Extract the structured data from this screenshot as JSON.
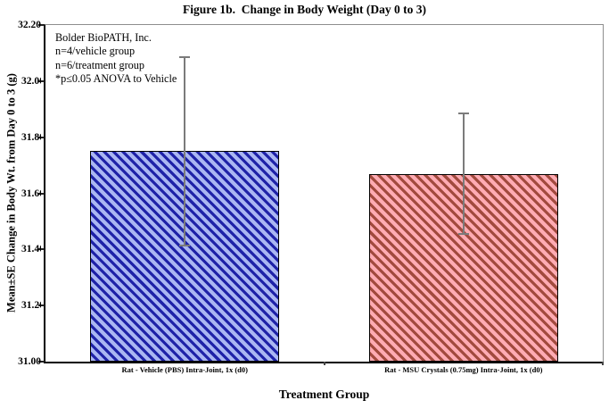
{
  "title": "Figure 1b.  Change in Body Weight (Day 0 to 3)",
  "annotation": {
    "lines": [
      "Bolder BioPATH, Inc.",
      "n=4/vehicle group",
      "n=6/treatment group",
      "*p≤0.05 ANOVA to Vehicle"
    ]
  },
  "chart_data": {
    "type": "bar",
    "title": "Figure 1b.  Change in Body Weight (Day 0 to 3)",
    "xlabel": "Treatment Group",
    "ylabel": "Mean±SE Change in Body Wt. from Day 0 to 3 (g)",
    "categories": [
      "Rat - Vehicle (PBS) Intra-Joint, 1x (d0)",
      "Rat - MSU Crystals (0.75mg) Intra-Joint, 1x (d0)"
    ],
    "values": [
      31.75,
      31.67
    ],
    "errors": [
      0.335,
      0.215
    ],
    "error_type": "SE",
    "ylim": [
      31.0,
      32.2
    ],
    "ytick_step": 0.2,
    "yticks": [
      {
        "label": "32.20",
        "clipped": false
      },
      {
        "label": "32.00",
        "clipped": true
      },
      {
        "label": "31.80",
        "clipped": true
      },
      {
        "label": "31.60",
        "clipped": true
      },
      {
        "label": "31.40",
        "clipped": true
      },
      {
        "label": "31.20",
        "clipped": true
      },
      {
        "label": "31.00",
        "clipped": false
      }
    ],
    "grid": false,
    "legend": null,
    "bar_styles": [
      {
        "name": "vehicle-blue",
        "fill_light": "#aab6f2",
        "stripe": "#1f22a8",
        "hatch": "diagonal-down",
        "border": "#000000"
      },
      {
        "name": "treatment-red",
        "fill_light": "#ffabb3",
        "stripe": "#a24a3e",
        "hatch": "diagonal-down",
        "border": "#000000"
      }
    ],
    "error_bar_color": "#7b7b7b"
  }
}
